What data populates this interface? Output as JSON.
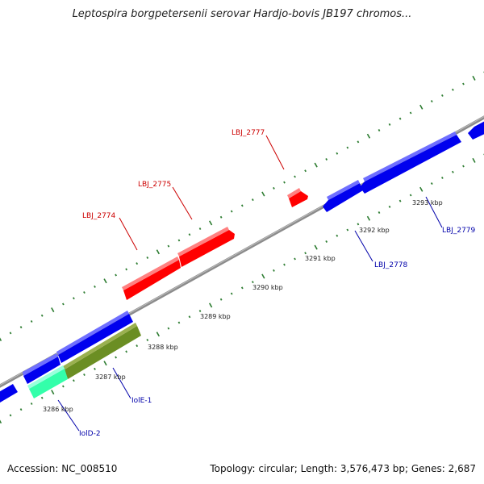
{
  "title": "Leptospira borgpetersenii serovar Hardjo-bovis JB197 chromos...",
  "footer": {
    "accession": "Accession: NC_008510",
    "summary": "Topology: circular; Length: 3,576,473 bp; Genes: 2,687"
  },
  "colors": {
    "forward_gene": "#ff0000",
    "reverse_gene": "#0000ee",
    "feature_green": "#6b8e23",
    "feature_teal": "#33ffaa",
    "forward_label": "#cc0000",
    "reverse_label": "#0000aa",
    "tick": "#2e7d32",
    "backbone": "#8c8c8c"
  },
  "kbp_ticks": [
    {
      "label": "3286 kbp",
      "kbp": 3286
    },
    {
      "label": "3287 kbp",
      "kbp": 3287
    },
    {
      "label": "3288 kbp",
      "kbp": 3288
    },
    {
      "label": "3289 kbp",
      "kbp": 3289
    },
    {
      "label": "3290 kbp",
      "kbp": 3290
    },
    {
      "label": "3291 kbp",
      "kbp": 3291
    },
    {
      "label": "3292 kbp",
      "kbp": 3292
    },
    {
      "label": "3293 kbp",
      "kbp": 3293
    }
  ],
  "gene_labels": [
    {
      "label": "LBJ_2774",
      "strand": "forward"
    },
    {
      "label": "LBJ_2775",
      "strand": "forward"
    },
    {
      "label": "LBJ_2777",
      "strand": "forward"
    },
    {
      "label": "IolD-2",
      "strand": "reverse"
    },
    {
      "label": "IolE-1",
      "strand": "reverse"
    },
    {
      "label": "LBJ_2778",
      "strand": "reverse"
    },
    {
      "label": "LBJ_2779",
      "strand": "reverse"
    }
  ]
}
